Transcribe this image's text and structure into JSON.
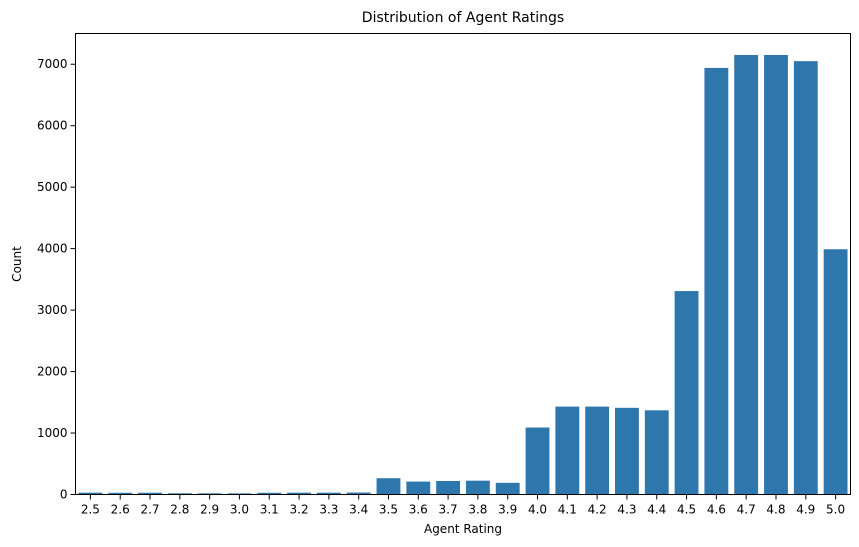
{
  "chart_data": {
    "type": "bar",
    "title": "Distribution of Agent Ratings",
    "xlabel": "Agent Rating",
    "ylabel": "Count",
    "categories": [
      "2.5",
      "2.6",
      "2.7",
      "2.8",
      "2.9",
      "3.0",
      "3.1",
      "3.2",
      "3.3",
      "3.4",
      "3.5",
      "3.6",
      "3.7",
      "3.8",
      "3.9",
      "4.0",
      "4.1",
      "4.2",
      "4.3",
      "4.4",
      "4.5",
      "4.6",
      "4.7",
      "4.8",
      "4.9",
      "5.0"
    ],
    "values": [
      30,
      28,
      29,
      20,
      19,
      18,
      28,
      30,
      30,
      32,
      265,
      210,
      220,
      225,
      190,
      1090,
      1430,
      1430,
      1410,
      1370,
      3310,
      6940,
      7150,
      7150,
      7050,
      3990
    ],
    "ylim": [
      0,
      7500
    ],
    "yticks": [
      0,
      1000,
      2000,
      3000,
      4000,
      5000,
      6000,
      7000
    ],
    "bar_color": "#2e77ac",
    "grid": false,
    "legend": "none"
  }
}
